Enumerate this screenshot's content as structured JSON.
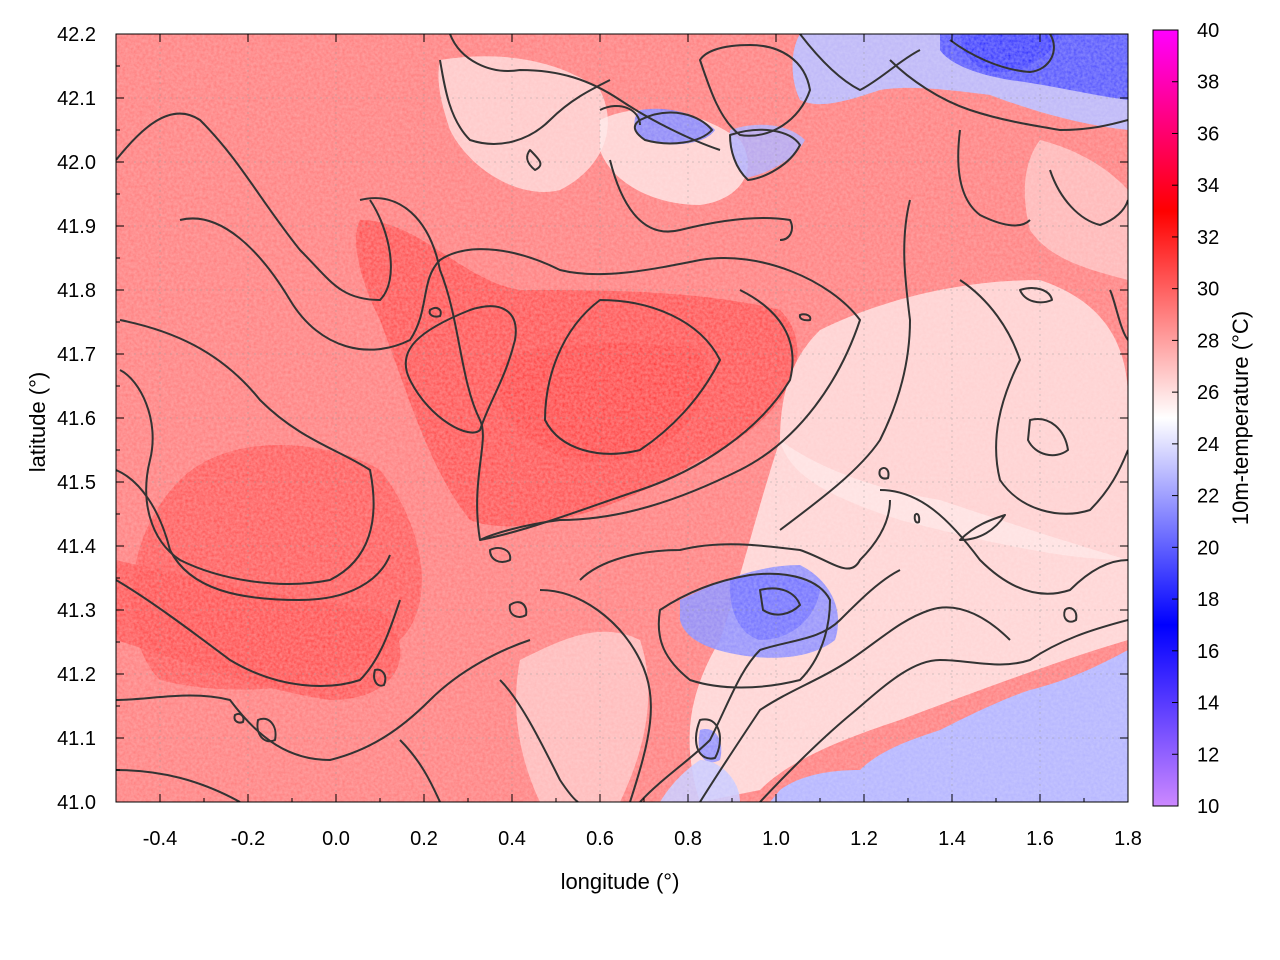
{
  "chart_data": {
    "type": "heatmap",
    "title": "",
    "xlabel": "longitude (°)",
    "ylabel": "latitude (°)",
    "colorbar_label": "10m-temperature (°C)",
    "xlim": [
      -0.5,
      1.8
    ],
    "ylim": [
      41.0,
      42.2
    ],
    "x_ticks": [
      "-0.4",
      "-0.2",
      "0.0",
      "0.2",
      "0.4",
      "0.6",
      "0.8",
      "1.0",
      "1.2",
      "1.4",
      "1.6",
      "1.8"
    ],
    "y_ticks": [
      "41.0",
      "41.1",
      "41.2",
      "41.3",
      "41.4",
      "41.5",
      "41.6",
      "41.7",
      "41.8",
      "41.9",
      "42.0",
      "42.1",
      "42.2"
    ],
    "colorbar_range": [
      10,
      40
    ],
    "colorbar_ticks": [
      "10",
      "12",
      "14",
      "16",
      "18",
      "20",
      "22",
      "24",
      "26",
      "28",
      "30",
      "32",
      "34",
      "36",
      "38",
      "40"
    ],
    "colorscale": [
      {
        "value": 10,
        "color": "#cc88ff"
      },
      {
        "value": 17,
        "color": "#0000ff"
      },
      {
        "value": 25,
        "color": "#ffffff"
      },
      {
        "value": 33,
        "color": "#ff0000"
      },
      {
        "value": 40,
        "color": "#ff00ff"
      }
    ],
    "grid": true,
    "contour_color": "#333333"
  }
}
